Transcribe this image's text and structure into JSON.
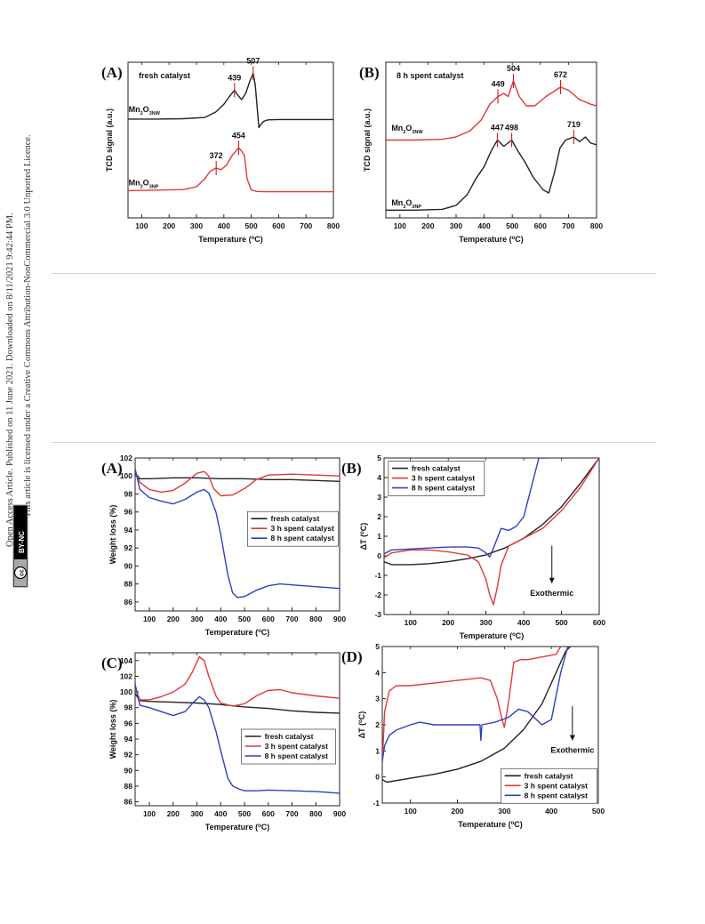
{
  "side_note": {
    "line1": "Open Access Article. Published on 11 June 2021. Downloaded on 8/11/2021 9:42:44 PM.",
    "line2": "This article is licensed under a Creative Commons Attribution-NonCommercial 3.0 Unported Licence.",
    "badge_cc": "cc",
    "badge_text": "BY-NC"
  },
  "colors": {
    "black": "#222222",
    "red": "#e0383a",
    "blue": "#2e3fc4",
    "marker": "#c81e1e",
    "rule": "#d8d5c8"
  },
  "chart_data": [
    {
      "id": "tpr-A",
      "type": "line",
      "panel_label": "(A)",
      "inset_title": "fresh catalyst",
      "xlabel": "Temperature (°C)",
      "ylabel": "TCD signal (a.u.)",
      "xlim": [
        50,
        800
      ],
      "xticks": [
        100,
        200,
        300,
        400,
        500,
        600,
        700,
        800
      ],
      "ylim": [
        0,
        1
      ],
      "yticks_shown": false,
      "series": [
        {
          "name": "Mn2O3NW",
          "label_main": "Mn",
          "label_sub1": "2",
          "label_mid": "O",
          "label_sub2": "3NW",
          "color": "black",
          "x": [
            50,
            150,
            250,
            330,
            370,
            400,
            420,
            439,
            450,
            465,
            480,
            495,
            507,
            515,
            522,
            528,
            535,
            545,
            560,
            600,
            700,
            800
          ],
          "y": [
            0.635,
            0.635,
            0.637,
            0.645,
            0.68,
            0.73,
            0.78,
            0.82,
            0.79,
            0.76,
            0.8,
            0.88,
            0.93,
            0.85,
            0.7,
            0.58,
            0.6,
            0.62,
            0.63,
            0.632,
            0.632,
            0.632
          ]
        },
        {
          "name": "Mn2O3NP",
          "label_main": "Mn",
          "label_sub1": "2",
          "label_mid": "O",
          "label_sub2": "3NP",
          "color": "red",
          "x": [
            50,
            150,
            250,
            300,
            330,
            350,
            372,
            390,
            410,
            430,
            454,
            465,
            475,
            485,
            500,
            520,
            550,
            600,
            700,
            800
          ],
          "y": [
            0.175,
            0.178,
            0.182,
            0.2,
            0.25,
            0.3,
            0.32,
            0.31,
            0.34,
            0.4,
            0.45,
            0.43,
            0.4,
            0.25,
            0.18,
            0.17,
            0.168,
            0.168,
            0.168,
            0.168
          ]
        }
      ],
      "peaks": [
        {
          "label": "439",
          "x": 439,
          "y": 0.82
        },
        {
          "label": "507",
          "x": 507,
          "y": 0.93
        },
        {
          "label": "372",
          "x": 372,
          "y": 0.32
        },
        {
          "label": "454",
          "x": 454,
          "y": 0.45
        }
      ]
    },
    {
      "id": "tpr-B",
      "type": "line",
      "panel_label": "(B)",
      "inset_title": "8 h spent catalyst",
      "xlabel": "Temperature (°C)",
      "ylabel": "TCD signal (a.u.)",
      "xlim": [
        50,
        800
      ],
      "xticks": [
        100,
        200,
        300,
        400,
        500,
        600,
        700,
        800
      ],
      "ylim": [
        0,
        1
      ],
      "yticks_shown": false,
      "series": [
        {
          "name": "Mn2O3NW",
          "label_main": "Mn",
          "label_sub1": "2",
          "label_mid": "O",
          "label_sub2": "3NW",
          "color": "red",
          "x": [
            50,
            150,
            250,
            300,
            350,
            390,
            420,
            449,
            470,
            485,
            504,
            525,
            550,
            580,
            620,
            672,
            700,
            740,
            780,
            800
          ],
          "y": [
            0.5,
            0.5,
            0.505,
            0.52,
            0.56,
            0.63,
            0.73,
            0.78,
            0.8,
            0.78,
            0.88,
            0.78,
            0.72,
            0.72,
            0.78,
            0.84,
            0.82,
            0.76,
            0.73,
            0.72
          ]
        },
        {
          "name": "Mn2O3NP",
          "label_main": "Mn",
          "label_sub1": "2",
          "label_mid": "O",
          "label_sub2": "3NP",
          "color": "black",
          "x": [
            50,
            150,
            250,
            300,
            340,
            370,
            400,
            425,
            447,
            470,
            498,
            520,
            545,
            575,
            610,
            630,
            650,
            670,
            690,
            719,
            740,
            760,
            780,
            800
          ],
          "y": [
            0.05,
            0.05,
            0.055,
            0.08,
            0.15,
            0.25,
            0.33,
            0.43,
            0.5,
            0.46,
            0.5,
            0.43,
            0.36,
            0.26,
            0.18,
            0.16,
            0.29,
            0.45,
            0.5,
            0.52,
            0.49,
            0.52,
            0.48,
            0.47
          ]
        }
      ],
      "peaks": [
        {
          "label": "449",
          "x": 449,
          "y": 0.78
        },
        {
          "label": "504",
          "x": 504,
          "y": 0.88
        },
        {
          "label": "672",
          "x": 672,
          "y": 0.84
        },
        {
          "label": "447",
          "x": 447,
          "y": 0.5
        },
        {
          "label": "498",
          "x": 498,
          "y": 0.5
        },
        {
          "label": "719",
          "x": 719,
          "y": 0.52
        }
      ]
    },
    {
      "id": "tga-A",
      "type": "line",
      "panel_label": "(A)",
      "xlabel": "Temperature (°C)",
      "ylabel": "Weight loss (%)",
      "xlim": [
        40,
        900
      ],
      "xticks": [
        100,
        200,
        300,
        400,
        500,
        600,
        700,
        800,
        900
      ],
      "ylim": [
        85,
        102
      ],
      "yticks": [
        86,
        88,
        90,
        92,
        94,
        96,
        98,
        100,
        102
      ],
      "legend": {
        "entries": [
          "fresh catalyst",
          "3 h spent catalyst",
          "8 h spent catalyst"
        ],
        "placement": "center-right"
      },
      "series": [
        {
          "name": "fresh catalyst",
          "color": "black",
          "x": [
            40,
            60,
            100,
            200,
            300,
            400,
            500,
            600,
            700,
            800,
            900
          ],
          "y": [
            100.3,
            99.7,
            99.7,
            99.8,
            99.8,
            99.7,
            99.7,
            99.6,
            99.6,
            99.5,
            99.4
          ]
        },
        {
          "name": "3 h spent catalyst",
          "color": "red",
          "x": [
            40,
            60,
            100,
            150,
            200,
            250,
            300,
            330,
            350,
            370,
            400,
            450,
            500,
            550,
            600,
            700,
            800,
            900
          ],
          "y": [
            100.6,
            99.3,
            98.5,
            98.2,
            98.4,
            99.2,
            100.3,
            100.5,
            100.0,
            98.6,
            97.8,
            97.9,
            98.6,
            99.6,
            100.1,
            100.2,
            100.1,
            100.0
          ]
        },
        {
          "name": "8 h spent catalyst",
          "color": "blue",
          "x": [
            40,
            60,
            100,
            150,
            200,
            250,
            300,
            330,
            350,
            380,
            400,
            430,
            450,
            470,
            500,
            550,
            600,
            650,
            700,
            800,
            900
          ],
          "y": [
            100.8,
            98.5,
            97.6,
            97.2,
            96.9,
            97.4,
            98.2,
            98.5,
            98.1,
            96.0,
            93.5,
            89.0,
            87.0,
            86.5,
            86.6,
            87.3,
            87.8,
            88.0,
            87.9,
            87.7,
            87.5
          ]
        }
      ]
    },
    {
      "id": "dta-B",
      "type": "line",
      "panel_label": "(B)",
      "xlabel": "Temperature (°C)",
      "ylabel": "ΔT (°C)",
      "xlim": [
        30,
        600
      ],
      "xticks": [
        100,
        200,
        300,
        400,
        500,
        600
      ],
      "ylim": [
        -3,
        5
      ],
      "yticks": [
        -3,
        -2,
        -1,
        0,
        1,
        2,
        3,
        4,
        5
      ],
      "annotation": "Exothermic",
      "legend": {
        "entries": [
          "fresh catalyst",
          "3 h spent catalyst",
          "8 h spent catalyst"
        ],
        "placement": "top-left"
      },
      "series": [
        {
          "name": "fresh catalyst",
          "color": "black",
          "x": [
            30,
            50,
            100,
            150,
            200,
            250,
            300,
            350,
            400,
            450,
            500,
            550,
            600
          ],
          "y": [
            -0.3,
            -0.45,
            -0.45,
            -0.4,
            -0.3,
            -0.15,
            0.05,
            0.4,
            0.9,
            1.6,
            2.5,
            3.7,
            5.0
          ]
        },
        {
          "name": "3 h spent catalyst",
          "color": "red",
          "x": [
            30,
            50,
            100,
            150,
            200,
            250,
            280,
            300,
            310,
            320,
            330,
            340,
            360,
            400,
            450,
            500,
            550,
            600
          ],
          "y": [
            -0.1,
            0.15,
            0.3,
            0.3,
            0.2,
            0.05,
            -0.3,
            -1.2,
            -2.0,
            -2.5,
            -1.6,
            -0.5,
            0.5,
            0.9,
            1.4,
            2.3,
            3.5,
            5.0
          ]
        },
        {
          "name": "8 h spent catalyst",
          "color": "blue",
          "x": [
            30,
            50,
            100,
            150,
            200,
            250,
            280,
            300,
            310,
            320,
            340,
            360,
            380,
            400,
            420,
            440,
            460
          ],
          "y": [
            0.1,
            0.3,
            0.35,
            0.4,
            0.45,
            0.45,
            0.4,
            0.15,
            -0.05,
            0.4,
            1.4,
            1.3,
            1.5,
            2.0,
            3.5,
            5.0,
            5.0
          ]
        }
      ]
    },
    {
      "id": "tga-C",
      "type": "line",
      "panel_label": "(C)",
      "xlabel": "Temperature (°C)",
      "ylabel": "Weight loss (%)",
      "xlim": [
        40,
        900
      ],
      "xticks": [
        100,
        200,
        300,
        400,
        500,
        600,
        700,
        800,
        900
      ],
      "ylim": [
        85.5,
        105
      ],
      "yticks": [
        86,
        88,
        90,
        92,
        94,
        96,
        98,
        100,
        102,
        104
      ],
      "legend": {
        "entries": [
          "fresh catalyst",
          "3 h spent catalyst",
          "8 h spent catalyst"
        ],
        "placement": "center-right"
      },
      "series": [
        {
          "name": "fresh catalyst",
          "color": "black",
          "x": [
            40,
            60,
            100,
            200,
            300,
            400,
            500,
            600,
            700,
            800,
            900
          ],
          "y": [
            99.8,
            98.9,
            98.8,
            98.7,
            98.6,
            98.4,
            98.1,
            97.9,
            97.6,
            97.4,
            97.3
          ]
        },
        {
          "name": "3 h spent catalyst",
          "color": "red",
          "x": [
            40,
            60,
            100,
            150,
            200,
            250,
            280,
            310,
            330,
            350,
            380,
            400,
            450,
            500,
            550,
            600,
            650,
            700,
            800,
            900
          ],
          "y": [
            100.5,
            99.0,
            99.0,
            99.4,
            100.0,
            101.0,
            102.5,
            104.5,
            104.0,
            102.0,
            99.5,
            98.6,
            98.2,
            98.5,
            99.5,
            100.2,
            100.3,
            99.9,
            99.5,
            99.2
          ]
        },
        {
          "name": "8 h spent catalyst",
          "color": "blue",
          "x": [
            40,
            60,
            100,
            150,
            200,
            250,
            280,
            310,
            330,
            350,
            380,
            400,
            430,
            450,
            480,
            500,
            550,
            600,
            700,
            800,
            900
          ],
          "y": [
            101.0,
            98.3,
            98.0,
            97.5,
            97.0,
            97.5,
            98.5,
            99.4,
            99.0,
            98.0,
            95.0,
            92.5,
            89.0,
            88.0,
            87.6,
            87.4,
            87.4,
            87.5,
            87.4,
            87.3,
            87.1
          ]
        }
      ]
    },
    {
      "id": "dta-D",
      "type": "line",
      "panel_label": "(D)",
      "xlabel": "Temperature (°C)",
      "ylabel": "ΔT (°C)",
      "xlim": [
        40,
        500
      ],
      "xticks": [
        100,
        200,
        300,
        400,
        500
      ],
      "ylim": [
        -1,
        5
      ],
      "yticks": [
        -1,
        0,
        1,
        2,
        3,
        4,
        5
      ],
      "annotation": "Exothermic",
      "legend": {
        "entries": [
          "fresh catalyst",
          "3 h spent catalyst",
          "8 h spent catalyst"
        ],
        "placement": "bottom-right"
      },
      "series": [
        {
          "name": "fresh catalyst",
          "color": "black",
          "x": [
            40,
            50,
            100,
            150,
            200,
            250,
            300,
            340,
            380,
            410,
            430,
            440
          ],
          "y": [
            -0.1,
            -0.2,
            -0.05,
            0.1,
            0.3,
            0.6,
            1.1,
            1.8,
            2.8,
            4.0,
            4.8,
            5.0
          ]
        },
        {
          "name": "3 h spent catalyst",
          "color": "red",
          "x": [
            40,
            45,
            55,
            70,
            100,
            150,
            200,
            250,
            270,
            285,
            295,
            300,
            310,
            320,
            335,
            350,
            380,
            410,
            420
          ],
          "y": [
            0.5,
            2.5,
            3.3,
            3.5,
            3.5,
            3.6,
            3.7,
            3.8,
            3.7,
            3.0,
            2.2,
            1.9,
            3.0,
            4.4,
            4.5,
            4.5,
            4.6,
            4.7,
            5.0
          ]
        },
        {
          "name": "8 h spent catalyst",
          "color": "blue",
          "x": [
            40,
            45,
            55,
            70,
            100,
            120,
            150,
            200,
            248,
            250,
            252,
            280,
            310,
            330,
            350,
            380,
            400,
            420,
            435
          ],
          "y": [
            0.6,
            1.2,
            1.6,
            1.8,
            2.0,
            2.1,
            2.0,
            2.0,
            2.0,
            1.4,
            2.0,
            2.1,
            2.3,
            2.6,
            2.5,
            2.0,
            2.2,
            4.0,
            5.0
          ]
        }
      ]
    }
  ]
}
